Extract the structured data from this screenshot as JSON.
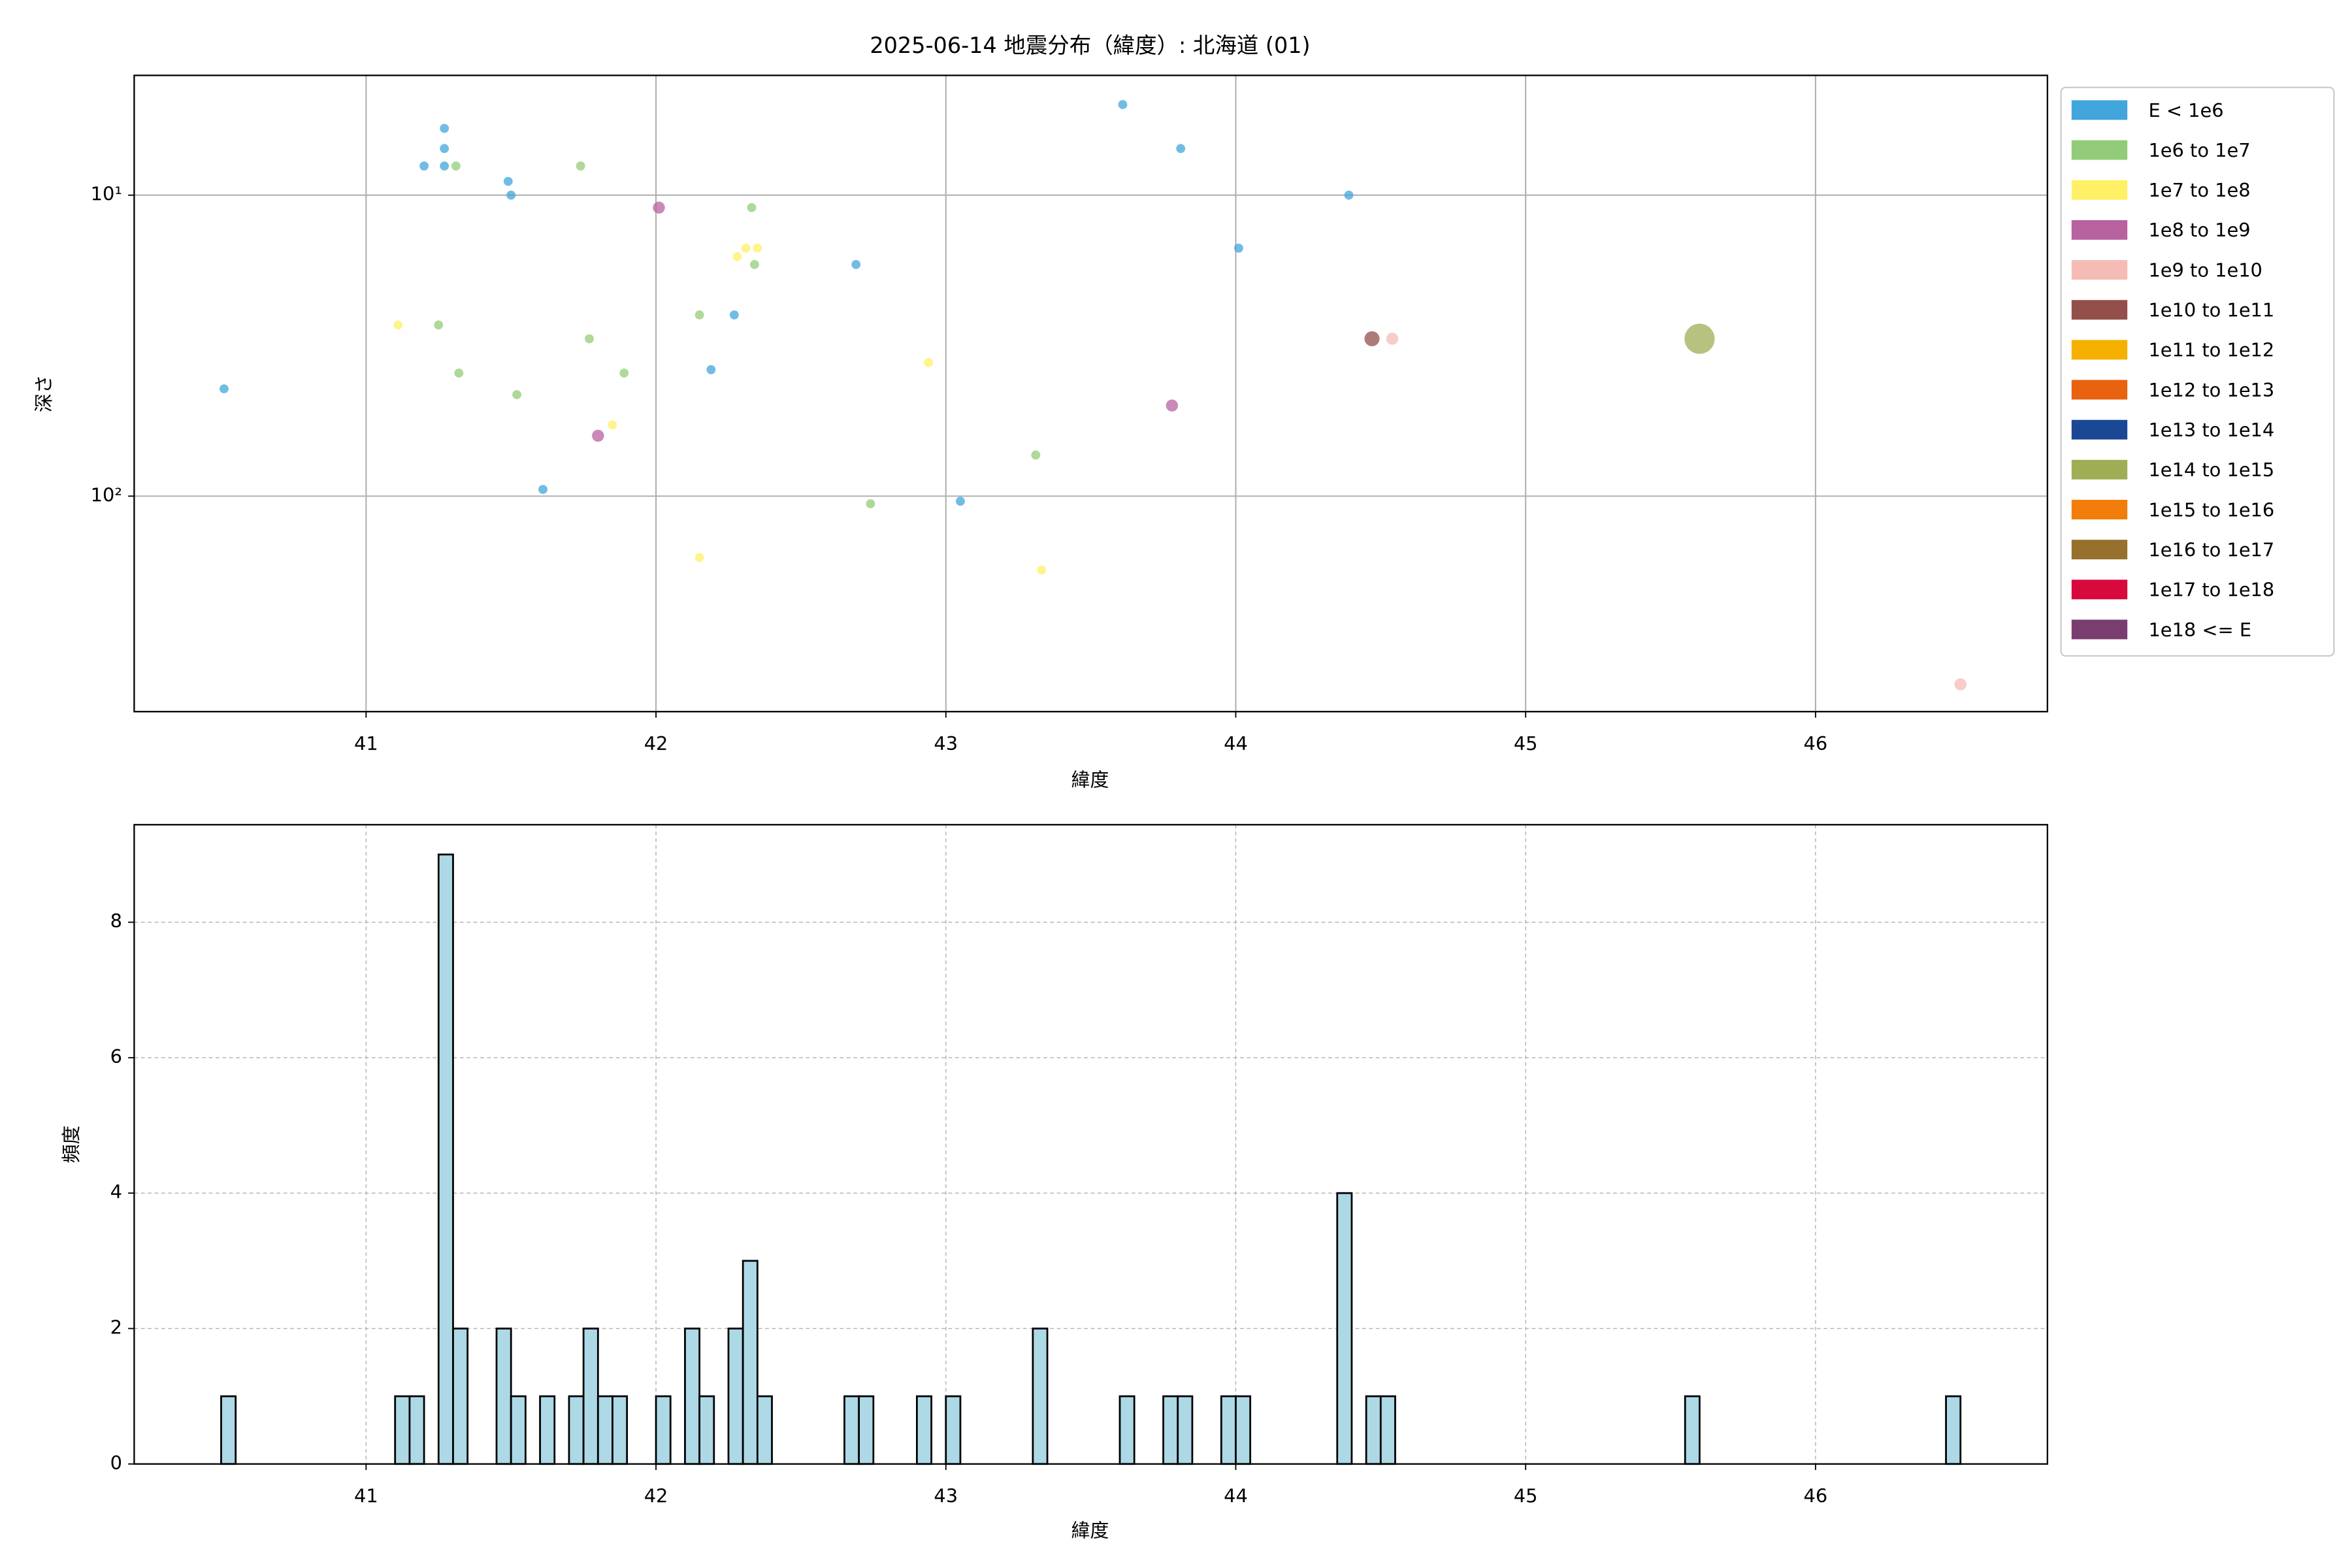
{
  "chart_data": [
    {
      "type": "scatter",
      "title": "2025-06-14 地震分布（緯度）: 北海道 (01)",
      "x_label": "緯度",
      "y_label": "深さ",
      "xlim": [
        40.2,
        46.8
      ],
      "xticks": [
        41,
        42,
        43,
        44,
        45,
        46
      ],
      "ylim": [
        4,
        520
      ],
      "y_scale": "log",
      "y_inverted": true,
      "yticks": [
        {
          "value": 10,
          "label": "10¹"
        },
        {
          "value": 100,
          "label": "10²"
        }
      ],
      "grid": true,
      "grid_style": "solid",
      "legend": "outside right",
      "series": [
        {
          "name": "E < 1e6",
          "color": "#42a5dc",
          "marker_size": 3,
          "x": [
            40.51,
            41.2,
            41.27,
            41.27,
            41.27,
            41.49,
            41.5,
            41.61,
            42.19,
            42.27,
            42.69,
            43.05,
            43.61,
            43.81,
            44.01,
            44.39
          ],
          "values": [
            44,
            8,
            6,
            7,
            8,
            9,
            10,
            95,
            38,
            25,
            17,
            104,
            5,
            7,
            15,
            10
          ]
        },
        {
          "name": "1e6 to 1e7",
          "color": "#93cc78",
          "marker_size": 3,
          "x": [
            41.31,
            41.74,
            42.33,
            41.25,
            41.32,
            41.52,
            41.77,
            41.89,
            42.15,
            42.34,
            42.74,
            43.31
          ],
          "values": [
            8,
            8,
            11,
            27,
            39,
            46,
            30,
            39,
            25,
            17,
            106,
            73
          ]
        },
        {
          "name": "1e7 to 1e8",
          "color": "#fff066",
          "marker_size": 3,
          "x": [
            41.11,
            41.85,
            42.15,
            42.28,
            42.31,
            42.35,
            42.94,
            43.33
          ],
          "values": [
            27,
            58,
            160,
            16,
            15,
            15,
            36,
            176
          ]
        },
        {
          "name": "1e8 to 1e9",
          "color": "#b8629f",
          "marker_size": 4,
          "x": [
            42.01,
            41.8,
            43.78
          ],
          "values": [
            11,
            63,
            50
          ]
        },
        {
          "name": "1e9 to 1e10",
          "color": "#f5bcb6",
          "marker_size": 4,
          "x": [
            44.54,
            46.5
          ],
          "values": [
            30,
            422
          ]
        },
        {
          "name": "1e10 to 1e11",
          "color": "#944f4b",
          "marker_size": 5,
          "x": [
            44.47
          ],
          "values": [
            30
          ]
        },
        {
          "name": "1e11 to 1e12",
          "color": "#f5b000",
          "marker_size": 5,
          "x": [],
          "values": []
        },
        {
          "name": "1e12 to 1e13",
          "color": "#e8620f",
          "marker_size": 6,
          "x": [],
          "values": []
        },
        {
          "name": "1e13 to 1e14",
          "color": "#1b4894",
          "marker_size": 8,
          "x": [],
          "values": []
        },
        {
          "name": "1e14 to 1e15",
          "color": "#9fae55",
          "marker_size": 10,
          "x": [
            45.6
          ],
          "values": [
            30
          ]
        },
        {
          "name": "1e15 to 1e16",
          "color": "#f27d0a",
          "marker_size": 12,
          "x": [],
          "values": []
        },
        {
          "name": "1e16 to 1e17",
          "color": "#96702c",
          "marker_size": 14,
          "x": [],
          "values": []
        },
        {
          "name": "1e17 to 1e18",
          "color": "#d8093c",
          "marker_size": 16,
          "x": [],
          "values": []
        },
        {
          "name": "1e18 <= E",
          "color": "#7a3d70",
          "marker_size": 18,
          "x": [],
          "values": []
        }
      ]
    },
    {
      "type": "histogram",
      "x_label": "緯度",
      "y_label": "頻度",
      "xlim": [
        40.2,
        46.8
      ],
      "xticks": [
        41,
        42,
        43,
        44,
        45,
        46
      ],
      "ylim": [
        0,
        9.44
      ],
      "yticks": [
        0,
        2,
        4,
        6,
        8
      ],
      "grid": true,
      "grid_style": "dashed",
      "color": "#add8e6",
      "edge_color": "#000000",
      "bins": [
        40.5,
        40.55,
        40.6,
        40.65,
        40.7,
        40.75,
        40.8,
        40.85,
        40.9,
        40.95,
        41,
        41.05,
        41.1,
        41.15,
        41.2,
        41.25,
        41.3,
        41.35,
        41.4,
        41.45,
        41.5,
        41.55,
        41.6,
        41.65,
        41.7,
        41.75,
        41.8,
        41.85,
        41.9,
        41.95,
        42,
        42.05,
        42.1,
        42.15,
        42.2,
        42.25,
        42.3,
        42.35,
        42.4,
        42.45,
        42.5,
        42.55,
        42.6,
        42.65,
        42.7,
        42.75,
        42.8,
        42.85,
        42.9,
        42.95,
        43,
        43.05,
        43.1,
        43.15,
        43.2,
        43.25,
        43.3,
        43.35,
        43.4,
        43.45,
        43.5,
        43.55,
        43.6,
        43.65,
        43.7,
        43.75,
        43.8,
        43.85,
        43.9,
        43.95,
        44,
        44.05,
        44.1,
        44.15,
        44.2,
        44.25,
        44.3,
        44.35,
        44.4,
        44.45,
        44.5,
        44.55,
        44.6,
        44.65,
        44.7,
        44.75,
        44.8,
        44.85,
        44.9,
        44.95,
        45,
        45.05,
        45.1,
        45.15,
        45.2,
        45.25,
        45.3,
        45.35,
        45.4,
        45.45,
        45.5,
        45.55,
        45.6,
        45.65,
        45.7,
        45.75,
        45.8,
        45.85,
        45.9,
        45.95,
        46,
        46.05,
        46.1,
        46.15,
        46.2,
        46.25,
        46.3,
        46.35,
        46.4,
        46.45,
        46.5
      ],
      "counts": [
        1,
        0,
        0,
        0,
        0,
        0,
        0,
        0,
        0,
        0,
        0,
        0,
        1,
        1,
        0,
        9,
        2,
        0,
        0,
        2,
        1,
        0,
        1,
        0,
        1,
        2,
        1,
        1,
        0,
        0,
        1,
        0,
        2,
        1,
        0,
        2,
        3,
        1,
        0,
        0,
        0,
        0,
        0,
        1,
        1,
        0,
        0,
        0,
        1,
        0,
        1,
        0,
        0,
        0,
        0,
        0,
        2,
        0,
        0,
        0,
        0,
        0,
        1,
        0,
        0,
        1,
        1,
        0,
        0,
        1,
        1,
        0,
        0,
        0,
        0,
        0,
        0,
        4,
        0,
        1,
        1,
        0,
        0,
        0,
        0,
        0,
        0,
        0,
        0,
        0,
        0,
        0,
        0,
        0,
        0,
        0,
        0,
        0,
        0,
        0,
        0,
        1,
        0,
        0,
        0,
        0,
        0,
        0,
        0,
        0,
        0,
        0,
        0,
        0,
        0,
        0,
        0,
        0,
        0,
        1
      ]
    }
  ]
}
